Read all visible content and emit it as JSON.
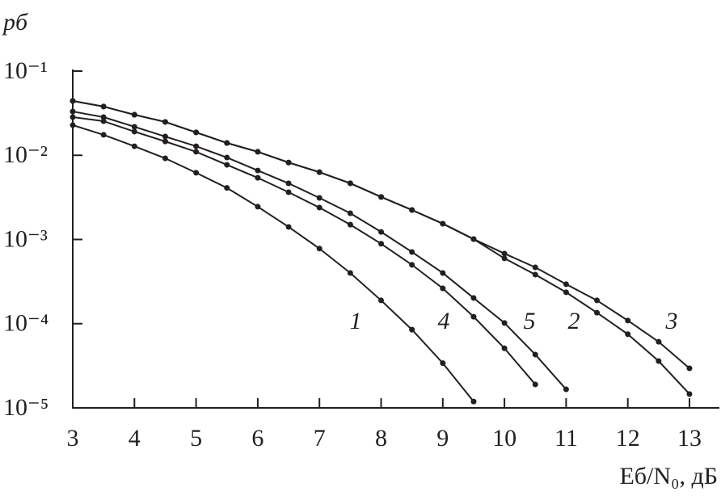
{
  "chart_data": {
    "type": "line",
    "ylabel": "pб",
    "xlabel": "Eб/N₀, дБ",
    "x": [
      3,
      3.5,
      4,
      4.5,
      5,
      5.5,
      6,
      6.5,
      7,
      7.5,
      8,
      8.5,
      9,
      9.5,
      10,
      10.5,
      11,
      11.5,
      12,
      12.5,
      13
    ],
    "series": [
      {
        "name": "1",
        "color": "#231f20",
        "values": [
          0.0228,
          0.0175,
          0.0128,
          0.0092,
          0.0062,
          0.0041,
          0.00245,
          0.00141,
          0.00078,
          0.0004,
          0.000189,
          8.5e-05,
          3.4e-05,
          1.19e-05,
          null,
          null,
          null,
          null,
          null,
          null,
          null
        ]
      },
      {
        "name": "4",
        "color": "#231f20",
        "values": [
          0.0284,
          0.0254,
          0.0191,
          0.0146,
          0.011,
          0.0077,
          0.0054,
          0.00364,
          0.00239,
          0.0015,
          0.00089,
          0.0005,
          0.000263,
          0.000121,
          5.1e-05,
          1.9e-05,
          null,
          null,
          null,
          null,
          null
        ]
      },
      {
        "name": "5",
        "color": "#231f20",
        "values": [
          0.0331,
          0.0284,
          0.0218,
          0.0167,
          0.0128,
          0.0094,
          0.0066,
          0.00464,
          0.00312,
          0.00205,
          0.00123,
          0.00071,
          0.0004,
          0.000202,
          0.000102,
          4.3e-05,
          1.66e-05,
          null,
          null,
          null,
          null
        ]
      },
      {
        "name": "2",
        "color": "#231f20",
        "values": [
          0.0442,
          0.0379,
          0.0303,
          0.0249,
          0.0187,
          0.014,
          0.011,
          0.0082,
          0.0063,
          0.00465,
          0.0032,
          0.00224,
          0.00154,
          0.00101,
          0.000596,
          0.000383,
          0.000236,
          0.000135,
          7.5e-05,
          3.6e-05,
          1.46e-05
        ]
      },
      {
        "name": "3",
        "color": "#231f20",
        "values": [
          0.0442,
          0.0379,
          0.0303,
          0.0249,
          0.0187,
          0.014,
          0.011,
          0.0082,
          0.0063,
          0.00465,
          0.0032,
          0.00224,
          0.00154,
          0.00101,
          0.00068,
          0.000467,
          0.000294,
          0.000189,
          0.000109,
          6.1e-05,
          2.95e-05
        ]
      }
    ],
    "xlim": [
      3,
      13
    ],
    "xticks": [
      3,
      4,
      5,
      6,
      7,
      8,
      9,
      10,
      11,
      12,
      13
    ],
    "ylim": [
      1e-05,
      0.1
    ],
    "log_y": true,
    "yticks": [
      {
        "value": 0.1,
        "label": "10⁻¹"
      },
      {
        "value": 0.01,
        "label": "10⁻²"
      },
      {
        "value": 0.001,
        "label": "10⁻³"
      },
      {
        "value": 0.0001,
        "label": "10⁻⁴"
      },
      {
        "value": 1e-05,
        "label": "10⁻⁵"
      }
    ],
    "grid": false
  }
}
